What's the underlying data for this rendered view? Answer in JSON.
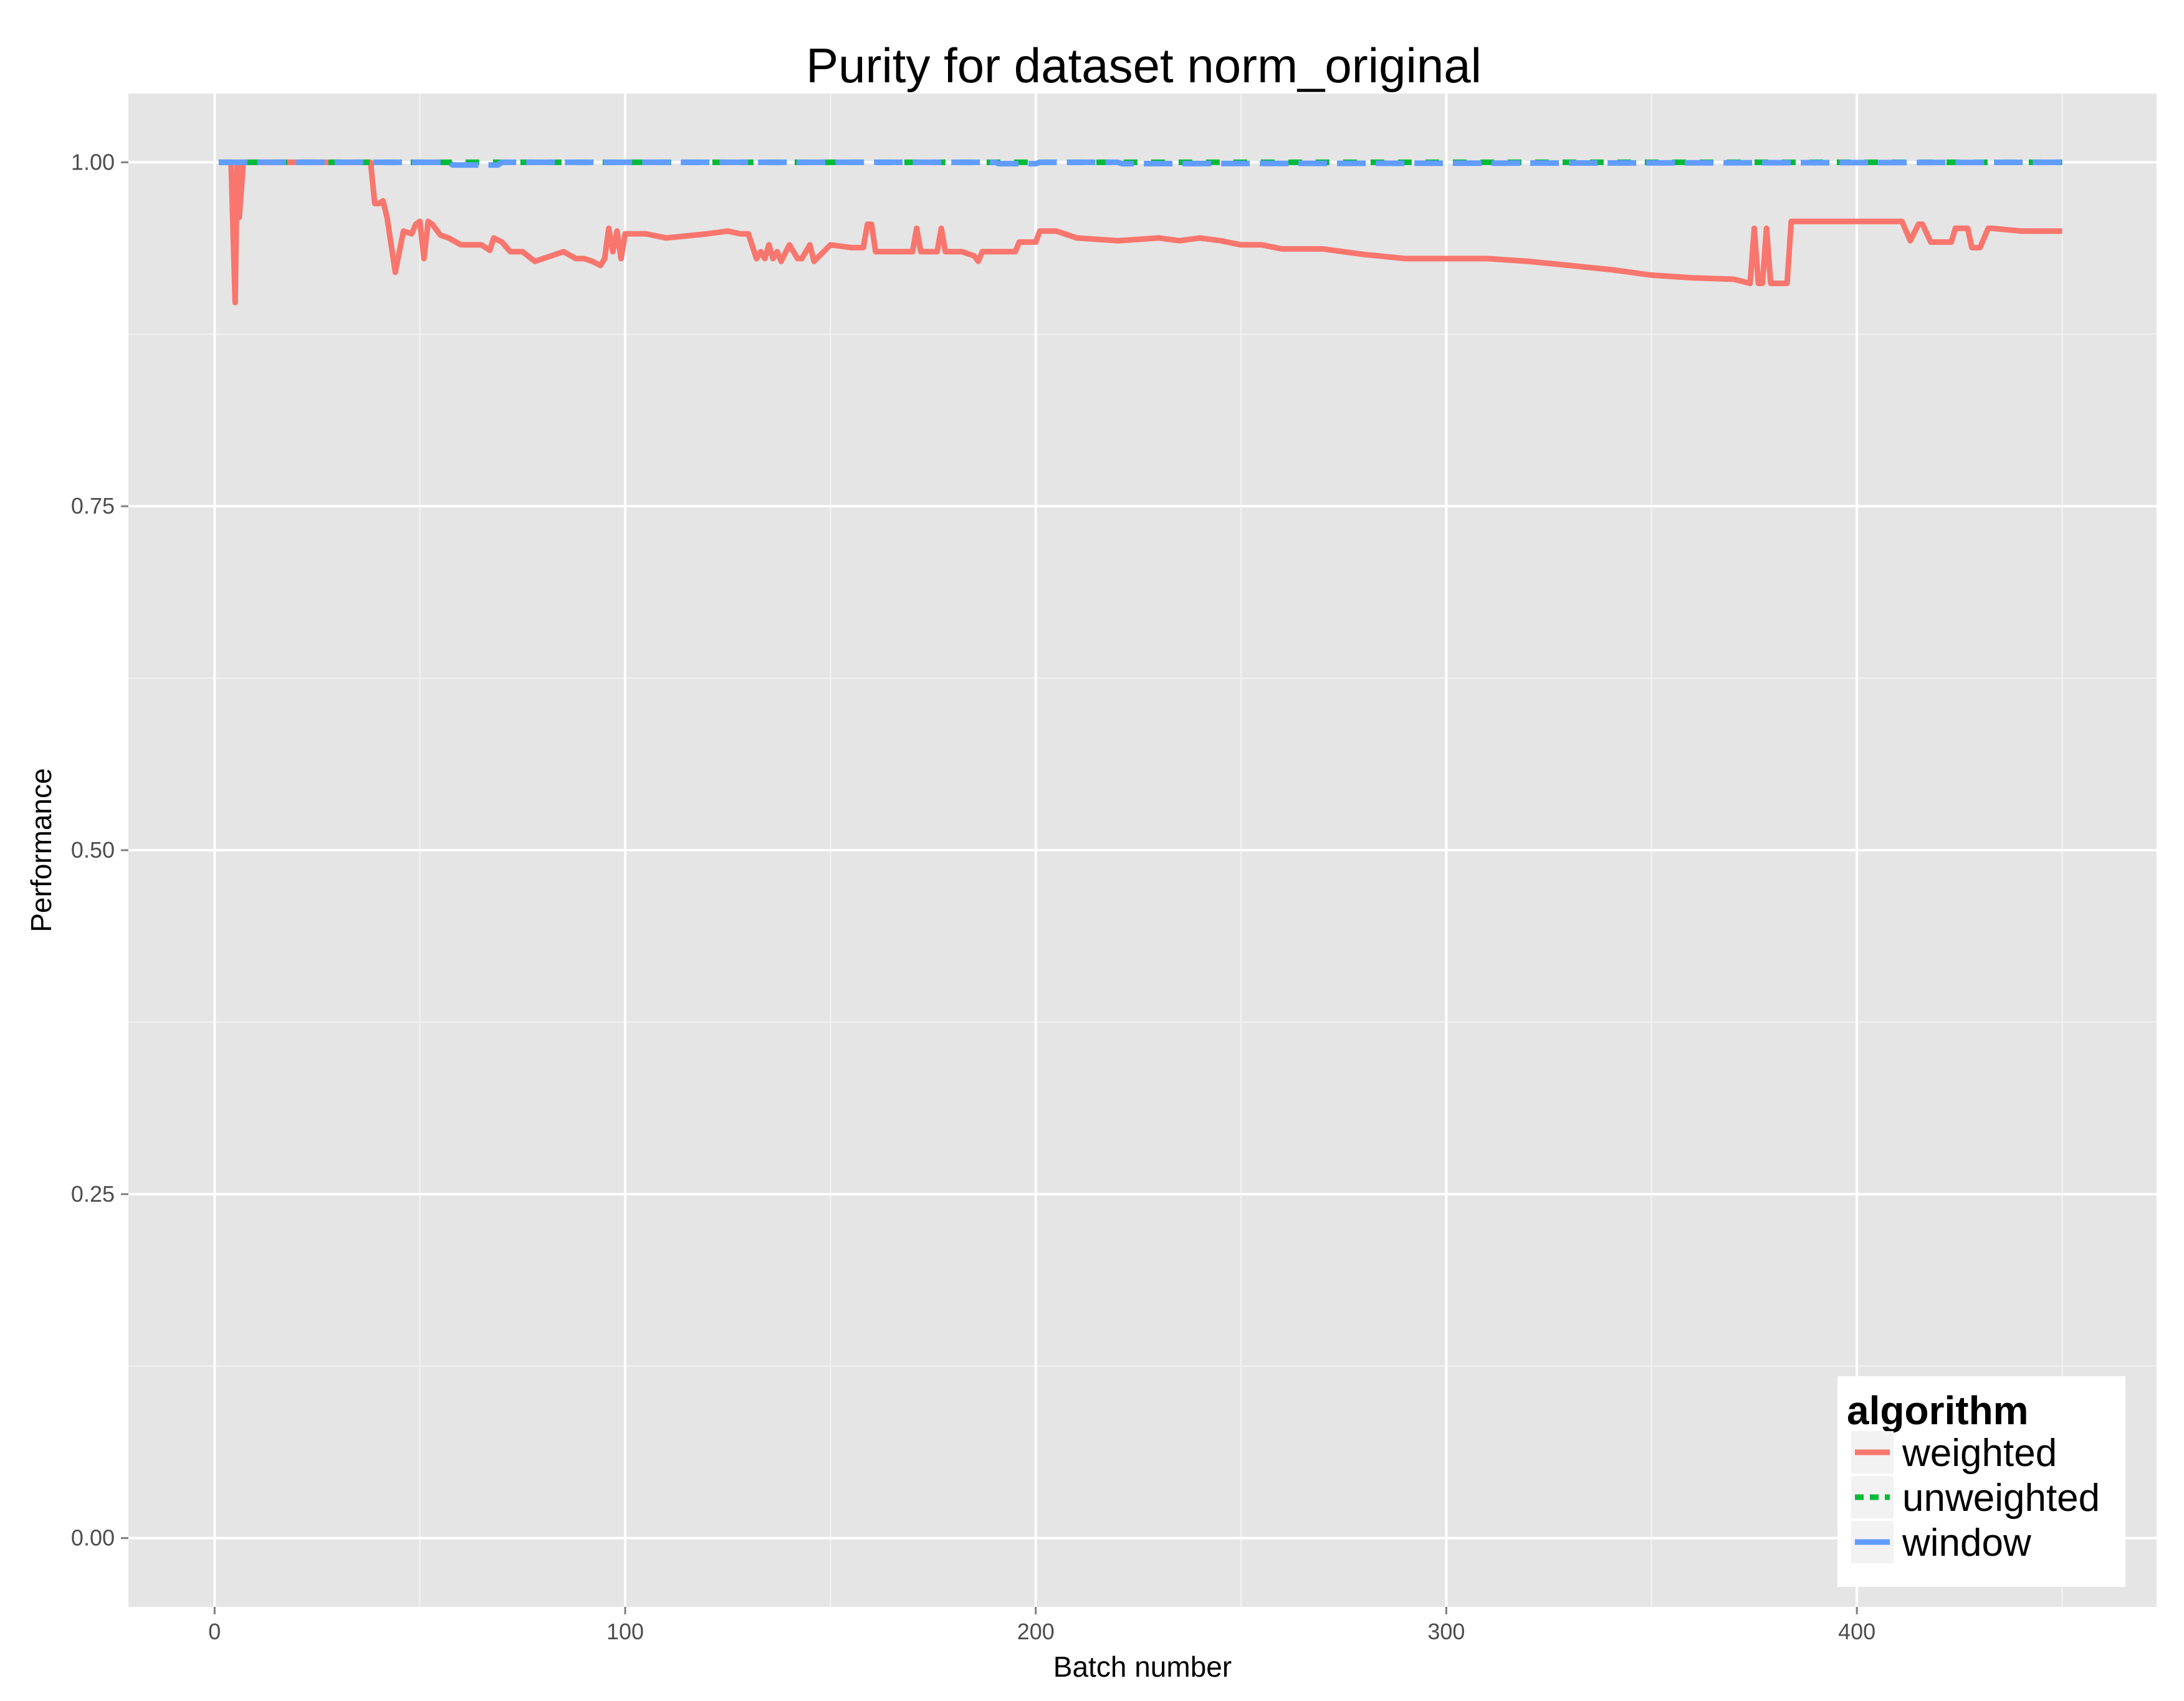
{
  "chart_data": {
    "type": "line",
    "title": "Purity for dataset norm_original",
    "xlabel": "Batch number",
    "ylabel": "Performance",
    "xlim": [
      -21,
      473
    ],
    "ylim": [
      -0.05,
      1.05
    ],
    "x_ticks": [
      0,
      100,
      200,
      300,
      400
    ],
    "x_tick_labels": [
      "0",
      "100",
      "200",
      "300",
      "400"
    ],
    "y_ticks": [
      0,
      0.25,
      0.5,
      0.75,
      1.0
    ],
    "y_tick_labels": [
      "0.00",
      "0.25",
      "0.50",
      "0.75",
      "1.00"
    ],
    "grid": true,
    "legend": {
      "title": "algorithm",
      "placement": "bottom-right",
      "entries": [
        "weighted",
        "unweighted",
        "window"
      ]
    },
    "series": [
      {
        "name": "weighted",
        "color": "#F8766D",
        "dash": "solid",
        "x": [
          1,
          4,
          5,
          5.5,
          6,
          7,
          8,
          30,
          37,
          38,
          39,
          40,
          41,
          42,
          43,
          44,
          46,
          48,
          49,
          50,
          51,
          52,
          53,
          55,
          57,
          60,
          65,
          67,
          68,
          70,
          72,
          75,
          78,
          80,
          85,
          88,
          90,
          92,
          94,
          95,
          96,
          97,
          98,
          99,
          100,
          105,
          110,
          120,
          125,
          128,
          130,
          132,
          133,
          134,
          135,
          136,
          137,
          138,
          140,
          142,
          143,
          144,
          145,
          146,
          150,
          155,
          158,
          159,
          160,
          161,
          165,
          170,
          171,
          172,
          175,
          176,
          177,
          178,
          182,
          185,
          186,
          187,
          190,
          195,
          196,
          200,
          201,
          205,
          210,
          220,
          230,
          235,
          240,
          245,
          250,
          255,
          260,
          270,
          280,
          290,
          300,
          305,
          310,
          320,
          330,
          340,
          350,
          360,
          370,
          374,
          375,
          376,
          377,
          378,
          379,
          380,
          383,
          384,
          390,
          410,
          411,
          413,
          415,
          416,
          418,
          423,
          424,
          427,
          428,
          430,
          432,
          433,
          440,
          450
        ],
        "y": [
          1.0,
          1.0,
          0.898,
          1.0,
          0.96,
          1.0,
          1.0,
          1.0,
          1.0,
          1.0,
          0.97,
          0.97,
          0.972,
          0.96,
          0.94,
          0.92,
          0.95,
          0.948,
          0.955,
          0.957,
          0.93,
          0.957,
          0.955,
          0.947,
          0.945,
          0.94,
          0.94,
          0.936,
          0.945,
          0.942,
          0.935,
          0.935,
          0.928,
          0.93,
          0.935,
          0.93,
          0.93,
          0.928,
          0.925,
          0.93,
          0.952,
          0.935,
          0.95,
          0.93,
          0.948,
          0.948,
          0.945,
          0.948,
          0.95,
          0.948,
          0.948,
          0.93,
          0.935,
          0.93,
          0.94,
          0.93,
          0.935,
          0.928,
          0.94,
          0.93,
          0.93,
          0.935,
          0.94,
          0.928,
          0.94,
          0.938,
          0.938,
          0.955,
          0.955,
          0.935,
          0.935,
          0.935,
          0.952,
          0.935,
          0.935,
          0.935,
          0.952,
          0.935,
          0.935,
          0.932,
          0.928,
          0.935,
          0.935,
          0.935,
          0.942,
          0.942,
          0.95,
          0.95,
          0.945,
          0.943,
          0.945,
          0.943,
          0.945,
          0.943,
          0.94,
          0.94,
          0.937,
          0.937,
          0.933,
          0.93,
          0.93,
          0.93,
          0.93,
          0.928,
          0.925,
          0.922,
          0.918,
          0.916,
          0.915,
          0.912,
          0.952,
          0.912,
          0.912,
          0.952,
          0.912,
          0.912,
          0.912,
          0.957,
          0.957,
          0.957,
          0.957,
          0.943,
          0.955,
          0.955,
          0.942,
          0.942,
          0.952,
          0.952,
          0.938,
          0.938,
          0.952,
          0.952,
          0.95,
          0.95
        ]
      },
      {
        "name": "unweighted",
        "color": "#00BA38",
        "dash": "dashed",
        "x": [
          1,
          450
        ],
        "y": [
          1.0,
          1.0
        ]
      },
      {
        "name": "window",
        "color": "#619CFF",
        "dash": "longdash",
        "x": [
          1,
          57,
          58,
          69,
          70,
          190,
          191,
          200,
          201,
          220,
          221,
          450
        ],
        "y": [
          1.0,
          1.0,
          0.998,
          0.998,
          1.0,
          1.0,
          0.999,
          0.999,
          1.0,
          1.0,
          0.999,
          1.0
        ]
      }
    ]
  }
}
